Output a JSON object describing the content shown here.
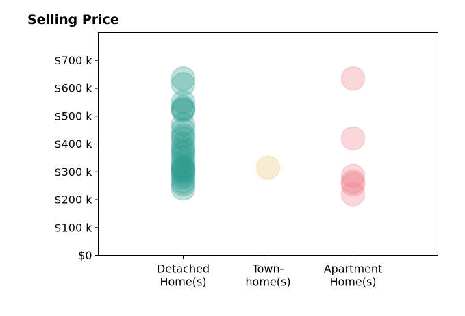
{
  "chart_data": {
    "type": "scatter",
    "title": "Selling Price",
    "xlabel": "",
    "ylabel": "",
    "categories": [
      [
        "Detached",
        "Home(s)"
      ],
      [
        "Town-",
        "home(s)"
      ],
      [
        "Apartment",
        "Home(s)"
      ]
    ],
    "y_ticks": [
      {
        "value": 0,
        "label": "$0"
      },
      {
        "value": 100,
        "label": "$100 k"
      },
      {
        "value": 200,
        "label": "$200 k"
      },
      {
        "value": 300,
        "label": "$300 k"
      },
      {
        "value": 400,
        "label": "$400 k"
      },
      {
        "value": 500,
        "label": "$500 k"
      },
      {
        "value": 600,
        "label": "$600 k"
      },
      {
        "value": 700,
        "label": "$700 k"
      }
    ],
    "ylim": [
      0,
      800
    ],
    "xlim": [
      -1,
      3
    ],
    "grid": false,
    "legend": "none",
    "series": [
      {
        "category_index": 0,
        "color": "#2a9d8f",
        "values": [
          240,
          255,
          265,
          280,
          290,
          300,
          305,
          310,
          315,
          320,
          335,
          350,
          365,
          375,
          385,
          400,
          420,
          430,
          450,
          470,
          520,
          525,
          530,
          550,
          615,
          635
        ]
      },
      {
        "category_index": 1,
        "color": "#e9c46a",
        "values": [
          315
        ]
      },
      {
        "category_index": 2,
        "color": "#ef7b84",
        "values": [
          220,
          255,
          265,
          285,
          420,
          635
        ]
      }
    ]
  }
}
